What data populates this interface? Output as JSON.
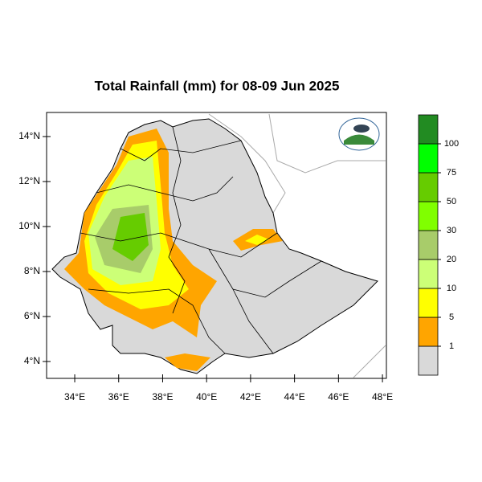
{
  "chart_data": {
    "type": "map",
    "title": "Total Rainfall (mm) for 08-09 Jun 2025",
    "xlim": [
      32.72,
      48.18
    ],
    "ylim": [
      3.25,
      15.07
    ],
    "xticks": [
      {
        "value": 34,
        "label": "34°E"
      },
      {
        "value": 36,
        "label": "36°E"
      },
      {
        "value": 38,
        "label": "38°E"
      },
      {
        "value": 40,
        "label": "40°E"
      },
      {
        "value": 42,
        "label": "42°E"
      },
      {
        "value": 44,
        "label": "44°E"
      },
      {
        "value": 46,
        "label": "46°E"
      },
      {
        "value": 48,
        "label": "48°E"
      }
    ],
    "yticks": [
      {
        "value": 4,
        "label": "4°N"
      },
      {
        "value": 6,
        "label": "6°N"
      },
      {
        "value": 8,
        "label": "8°N"
      },
      {
        "value": 10,
        "label": "10°N"
      },
      {
        "value": 12,
        "label": "12°N"
      },
      {
        "value": 14,
        "label": "14°N"
      }
    ],
    "colorbar": {
      "levels": [
        1,
        5,
        10,
        20,
        30,
        50,
        75,
        100
      ],
      "colors": [
        "#d9d9d9",
        "#ffa500",
        "#ffff00",
        "#ccff77",
        "#a8cc6a",
        "#80ff00",
        "#66cc00",
        "#00ff00",
        "#228b22"
      ]
    }
  }
}
